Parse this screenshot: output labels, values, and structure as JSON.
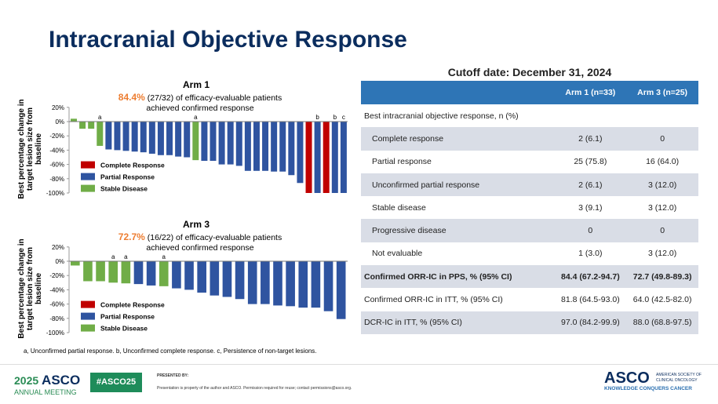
{
  "title": "Intracranial Objective Response",
  "legend": [
    {
      "label": "Complete Response",
      "color": "#c00000"
    },
    {
      "label": "Partial Response",
      "color": "#2f54a0"
    },
    {
      "label": "Stable Disease",
      "color": "#70ad47"
    }
  ],
  "colors": {
    "CR": "#c00000",
    "PR": "#2f54a0",
    "SD": "#70ad47"
  },
  "chart_data": [
    {
      "type": "bar",
      "title": "Arm 1",
      "highlight": "84.4%",
      "subtitle_rest": "(27/32) of efficacy-evaluable patients",
      "subtitle2": "achieved confirmed response",
      "ylabel": "Best percentage change in target lesion size from baseline",
      "ylim": [
        -100,
        20
      ],
      "yticks": [
        "20%",
        "0%",
        "-20%",
        "-40%",
        "-60%",
        "-80%",
        "-100%"
      ],
      "legend_placement": "bottom-left",
      "values": [
        4,
        -10,
        -10,
        -34,
        -39,
        -40,
        -41,
        -42,
        -43,
        -45,
        -47,
        -47,
        -49,
        -50,
        -54,
        -55,
        -55,
        -60,
        -60,
        -62,
        -69,
        -69,
        -69,
        -70,
        -70,
        -75,
        -86,
        -100,
        -100,
        -100,
        -100,
        -100
      ],
      "response": [
        "SD",
        "SD",
        "SD",
        "SD",
        "PR",
        "PR",
        "PR",
        "PR",
        "PR",
        "PR",
        "PR",
        "PR",
        "PR",
        "PR",
        "SD",
        "PR",
        "PR",
        "PR",
        "PR",
        "PR",
        "PR",
        "PR",
        "PR",
        "PR",
        "PR",
        "PR",
        "PR",
        "CR",
        "PR",
        "CR",
        "PR",
        "PR"
      ],
      "annotations": [
        "",
        "",
        "",
        "a",
        "",
        "",
        "",
        "",
        "",
        "",
        "",
        "",
        "",
        "",
        "a",
        "",
        "",
        "",
        "",
        "",
        "",
        "",
        "",
        "",
        "",
        "",
        "",
        "",
        "b",
        "",
        "b",
        "c"
      ]
    },
    {
      "type": "bar",
      "title": "Arm 3",
      "highlight": "72.7%",
      "subtitle_rest": "(16/22) of efficacy-evaluable patients",
      "subtitle2": "achieved confirmed response",
      "ylabel": "Best percentage change in target lesion size from baseline",
      "ylim": [
        -100,
        20
      ],
      "yticks": [
        "20%",
        "0%",
        "-20%",
        "-40%",
        "-60%",
        "-80%",
        "-100%"
      ],
      "legend_placement": "bottom-left",
      "values": [
        -6,
        -28,
        -28,
        -30,
        -31,
        -32,
        -34,
        -35,
        -38,
        -40,
        -44,
        -48,
        -50,
        -53,
        -60,
        -60,
        -62,
        -63,
        -65,
        -65,
        -70,
        -81
      ],
      "response": [
        "SD",
        "SD",
        "SD",
        "SD",
        "SD",
        "PR",
        "PR",
        "SD",
        "PR",
        "PR",
        "PR",
        "PR",
        "PR",
        "PR",
        "PR",
        "PR",
        "PR",
        "PR",
        "PR",
        "PR",
        "PR",
        "PR"
      ],
      "annotations": [
        "",
        "",
        "",
        "a",
        "a",
        "",
        "",
        "a",
        "",
        "",
        "",
        "",
        "",
        "",
        "",
        "",
        "",
        "",
        "",
        "",
        "",
        ""
      ]
    }
  ],
  "footnote": "a, Unconfirmed partial response. b, Unconfirmed complete response. c, Persistence of non-target lesions.",
  "table": {
    "cutoff": "Cutoff date: December 31, 2024",
    "headers": [
      "",
      "Arm 1 (n=33)",
      "Arm 3 (n=25)"
    ],
    "rows": [
      {
        "label": "Best intracranial objective response, n (%)",
        "a": "",
        "b": "",
        "style": "section"
      },
      {
        "label": "Complete response",
        "a": "2 (6.1)",
        "b": "0",
        "style": "sub g"
      },
      {
        "label": "Partial response",
        "a": "25 (75.8)",
        "b": "16 (64.0)",
        "style": "sub"
      },
      {
        "label": "Unconfirmed partial response",
        "a": "2 (6.1)",
        "b": "3 (12.0)",
        "style": "sub g"
      },
      {
        "label": "Stable disease",
        "a": "3 (9.1)",
        "b": "3 (12.0)",
        "style": "sub"
      },
      {
        "label": "Progressive disease",
        "a": "0",
        "b": "0",
        "style": "sub g"
      },
      {
        "label": "Not evaluable",
        "a": "1 (3.0)",
        "b": "3 (12.0)",
        "style": "sub"
      },
      {
        "label": "Confirmed ORR-IC in PPS, % (95% CI)",
        "a": "84.4 (67.2-94.7)",
        "b": "72.7 (49.8-89.3)",
        "style": "top g b"
      },
      {
        "label": "Confirmed ORR-IC in ITT, % (95% CI)",
        "a": "81.8 (64.5-93.0)",
        "b": "64.0 (42.5-82.0)",
        "style": "top"
      },
      {
        "label": "DCR-IC in ITT, % (95% CI)",
        "a": "97.0 (84.2-99.9)",
        "b": "88.0 (68.8-97.5)",
        "style": "top g"
      }
    ]
  },
  "footer": {
    "year": "2025",
    "asco": "ASCO",
    "meeting": "ANNUAL MEETING",
    "hashtag": "#ASCO25",
    "presented": "PRESENTED BY:",
    "property": "Presentation is property of the author and ASCO. Permission required for reuse; contact permissions@asco.org.",
    "society": "AMERICAN SOCIETY OF CLINICAL ONCOLOGY",
    "tagline": "KNOWLEDGE CONQUERS CANCER"
  }
}
